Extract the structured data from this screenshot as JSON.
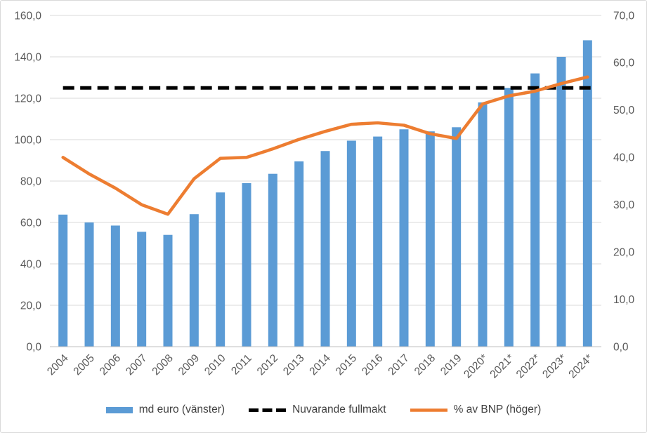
{
  "palette": {
    "background": "#FFFFFF",
    "frame_border": "#D9D9D9",
    "gridline": "#D9D9D9",
    "axis_line": "#BFBFBF",
    "tick_text": "#595959",
    "legend_text": "#404040",
    "bar_blue": "#5B9BD5",
    "line_orange": "#ED7D31",
    "dashed_black": "#000000"
  },
  "chart_data": {
    "type": "bar",
    "subtype": "combo bar + line with dual value axes",
    "title": "",
    "categories": [
      "2004",
      "2005",
      "2006",
      "2007",
      "2008",
      "2009",
      "2010",
      "2011",
      "2012",
      "2013",
      "2014",
      "2015",
      "2016",
      "2017",
      "2018",
      "2019",
      "2020*",
      "2021*",
      "2022*",
      "2023*",
      "2024*"
    ],
    "series": [
      {
        "name": "md euro (vänster)",
        "type": "bar",
        "axis": "left",
        "color": "#5B9BD5",
        "values": [
          63.8,
          60,
          58.5,
          55.5,
          54,
          64,
          74.5,
          79,
          83.5,
          89.5,
          94.5,
          99.5,
          101.5,
          105,
          104,
          106,
          118,
          125,
          132,
          140,
          148
        ]
      },
      {
        "name": "Nuvarande fullmakt",
        "type": "dashed-line",
        "axis": "left",
        "color": "#000000",
        "constant_value": 125
      },
      {
        "name": "% av BNP (höger)",
        "type": "line",
        "axis": "right",
        "color": "#ED7D31",
        "values": [
          40,
          36.5,
          33.5,
          30,
          28,
          35.5,
          39.8,
          40,
          41.8,
          43.8,
          45.5,
          47,
          47.3,
          46.8,
          45,
          44,
          51.3,
          53,
          54,
          55.6,
          57
        ]
      }
    ],
    "left_axis": {
      "min": 0,
      "max": 160,
      "step": 20,
      "tick_labels": [
        "0,0",
        "20,0",
        "40,0",
        "60,0",
        "80,0",
        "100,0",
        "120,0",
        "140,0",
        "160,0"
      ]
    },
    "right_axis": {
      "min": 0,
      "max": 70,
      "step": 10,
      "tick_labels": [
        "0,0",
        "10,0",
        "20,0",
        "30,0",
        "40,0",
        "50,0",
        "60,0",
        "70,0"
      ]
    },
    "grid": true,
    "legend_position": "bottom"
  }
}
